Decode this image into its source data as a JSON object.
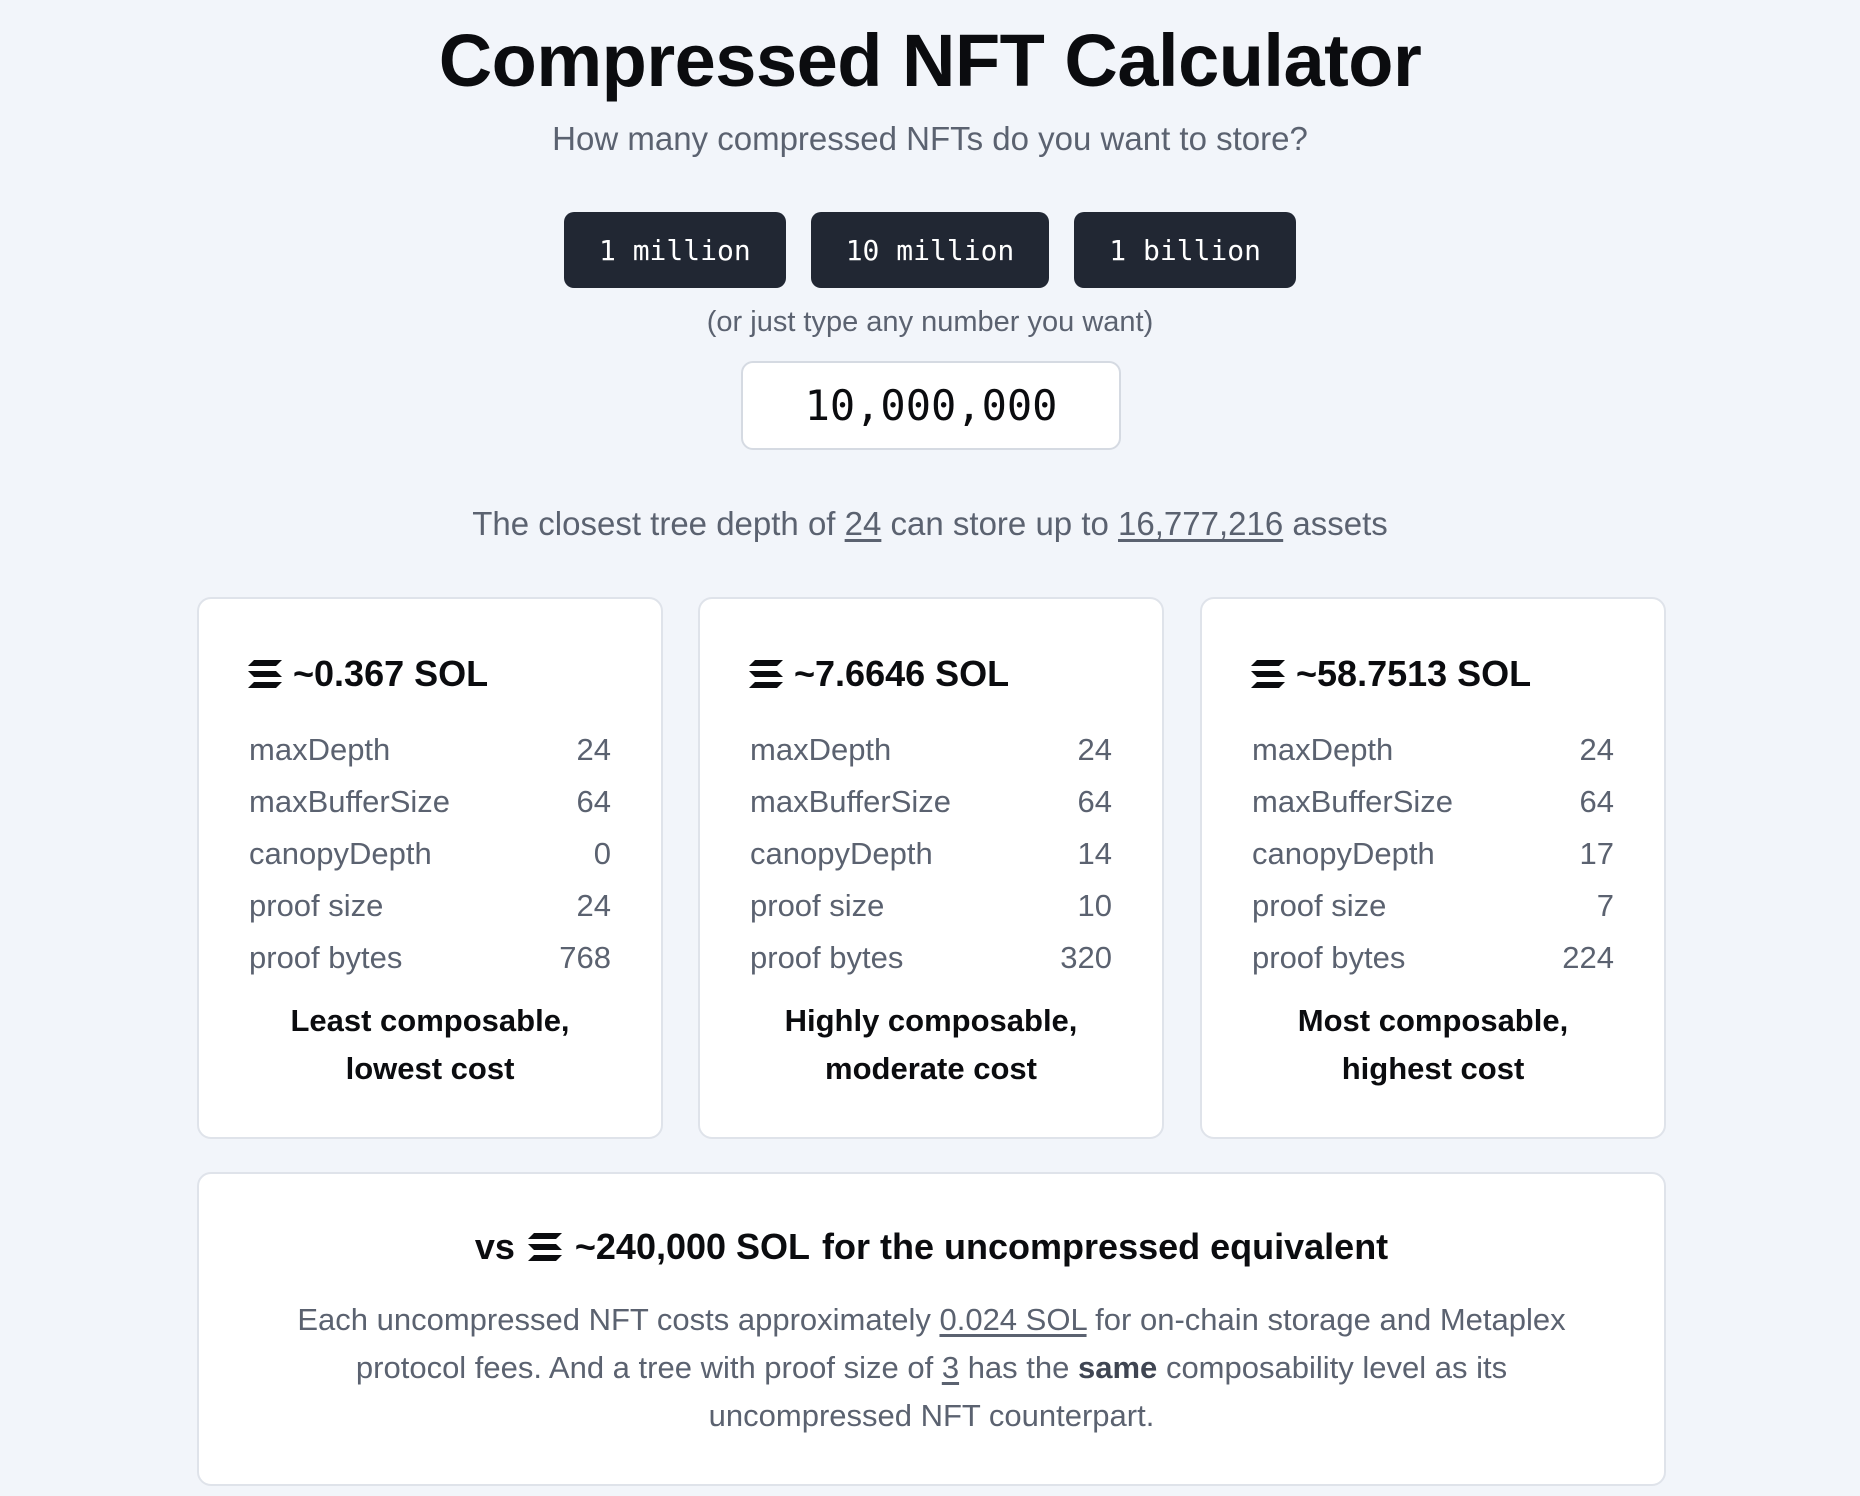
{
  "header": {
    "title": "Compressed NFT Calculator",
    "subtitle": "How many compressed NFTs do you want to store?"
  },
  "presets": [
    "1 million",
    "10 million",
    "1 billion"
  ],
  "input": {
    "hint": "(or just type any number you want)",
    "value": "10,000,000"
  },
  "summary": {
    "prefix": "The closest tree depth of",
    "depth": "24",
    "middle": "can store up to",
    "capacity": "16,777,216",
    "suffix": "assets"
  },
  "row_labels": [
    "maxDepth",
    "maxBufferSize",
    "canopyDepth",
    "proof size",
    "proof bytes"
  ],
  "options": [
    {
      "cost": "~0.367 SOL",
      "values": [
        "24",
        "64",
        "0",
        "24",
        "768"
      ],
      "verdict_line1": "Least composable,",
      "verdict_line2": "lowest cost"
    },
    {
      "cost": "~7.6646 SOL",
      "values": [
        "24",
        "64",
        "14",
        "10",
        "320"
      ],
      "verdict_line1": "Highly composable,",
      "verdict_line2": "moderate cost"
    },
    {
      "cost": "~58.7513 SOL",
      "values": [
        "24",
        "64",
        "17",
        "7",
        "224"
      ],
      "verdict_line1": "Most composable,",
      "verdict_line2": "highest cost"
    }
  ],
  "comparison": {
    "vs": "vs",
    "cost": "~240,000 SOL",
    "tail": "for the uncompressed equivalent",
    "body_1": "Each uncompressed NFT costs approximately",
    "per_nft": "0.024 SOL",
    "body_2": "for on-chain storage and Metaplex protocol fees. And a tree with proof size of",
    "proof_size": "3",
    "body_3": "has the",
    "emphasis": "same",
    "body_4": "composability level as its uncompressed NFT counterpart."
  },
  "icons": {
    "currency": "solana-icon"
  },
  "colors": {
    "background": "#f2f5fa",
    "button": "#212733",
    "muted_text": "#5b6270"
  }
}
